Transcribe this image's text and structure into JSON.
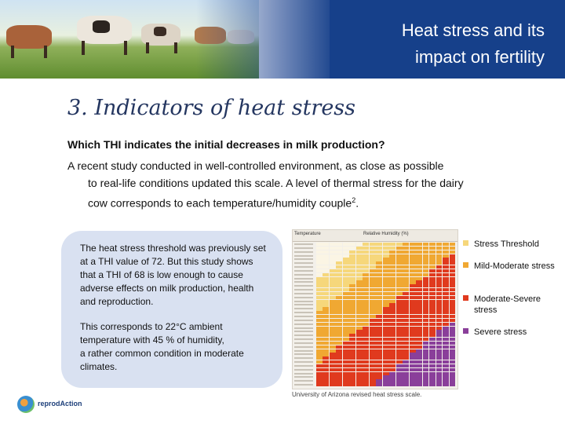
{
  "header": {
    "title_line1": "Heat stress and its",
    "title_line2": "impact on fertility"
  },
  "section": {
    "title": "3. Indicators of heat stress"
  },
  "question": "Which THI indicates the initial decreases in milk production?",
  "paragraph": {
    "line1": "A recent study conducted in well-controlled environment, as close as possible",
    "line2": "to real-life conditions updated this scale. A level of thermal stress for the dairy",
    "line3_main": "cow corresponds to each temperature/humidity couple",
    "line3_sup": "2",
    "line3_end": "."
  },
  "bubble": {
    "text1": "The heat stress threshold was previously set at a THI value of 72. But this study shows that a THI of 68 is low enough to cause adverse effects on milk production, health and reproduction.",
    "text2_line1": "This corresponds to 22°C ambient",
    "text2_line2": "temperature with 45 % of humidity,",
    "text2_line3": "a rather common condition in moderate",
    "text2_line4": "climates."
  },
  "table": {
    "head_temperature": "Temperature",
    "head_humidity": "Relative Humidity (%)",
    "head_f": "°F",
    "head_c": "°C",
    "humidity_cols": [
      "0",
      "5",
      "10",
      "15",
      "20",
      "25",
      "30",
      "35",
      "40",
      "45",
      "50",
      "55",
      "60",
      "65",
      "70",
      "75",
      "80",
      "85",
      "90",
      "95",
      "100"
    ]
  },
  "caption": "University of Arizona revised heat stress scale.",
  "legend": [
    {
      "label": "Stress Threshold",
      "color": "#f6d77b"
    },
    {
      "label": "Mild-Moderate stress",
      "color": "#f0a832"
    },
    {
      "label": "Moderate-Severe stress",
      "color": "#e03a1e"
    },
    {
      "label": "Severe stress",
      "color": "#8a3f9a"
    }
  ],
  "logo": {
    "text": "reprodAction"
  }
}
